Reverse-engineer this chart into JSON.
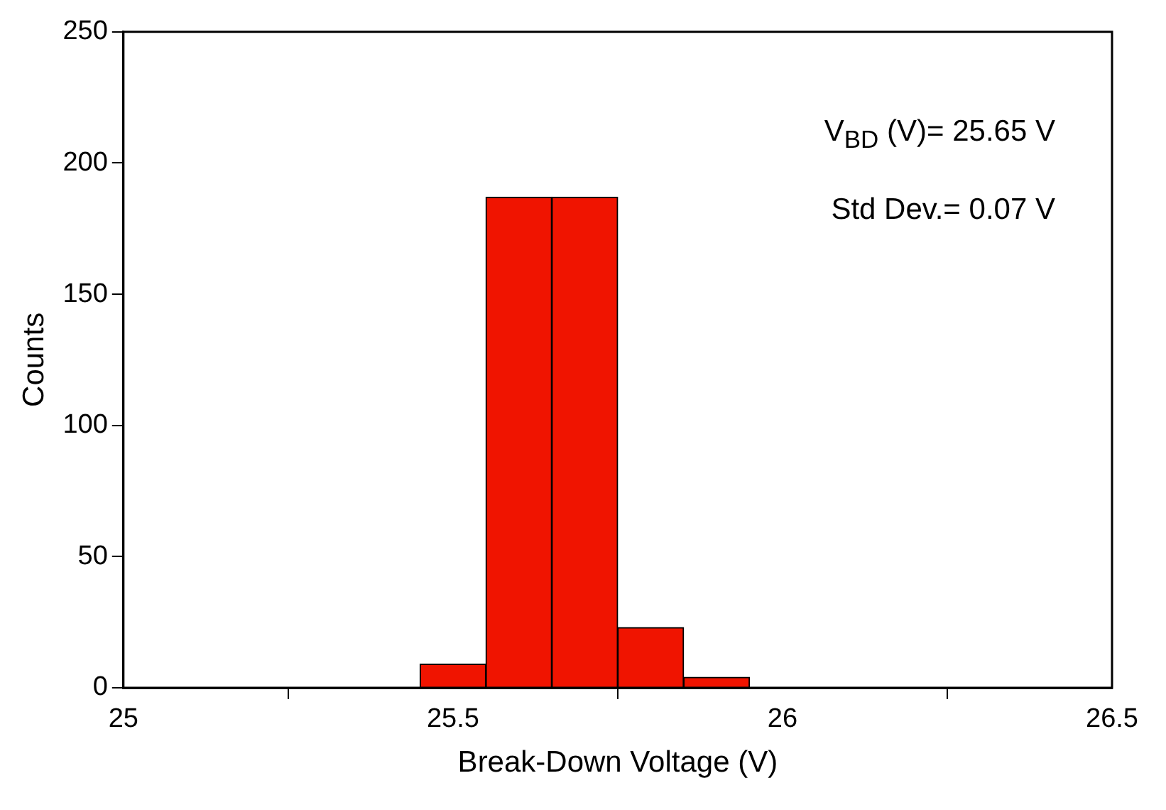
{
  "chart_data": {
    "type": "histogram",
    "xlabel": "Break-Down Voltage (V)",
    "ylabel": "Counts",
    "bins": [
      25.45,
      25.55,
      25.65,
      25.75,
      25.85,
      25.95
    ],
    "values": [
      9,
      187,
      187,
      23,
      4
    ],
    "color": "#f01400",
    "xlim": [
      25,
      26.5
    ],
    "xticks": [
      25,
      25.5,
      26,
      26.5
    ],
    "ylim": [
      0,
      250
    ],
    "yticks": [
      0,
      50,
      100,
      150,
      200,
      250
    ],
    "grid": false,
    "legend": false,
    "annotations": [
      "V$_{BD}$ (V)= 25.65 V",
      "Std Dev.= 0.07 V"
    ]
  }
}
